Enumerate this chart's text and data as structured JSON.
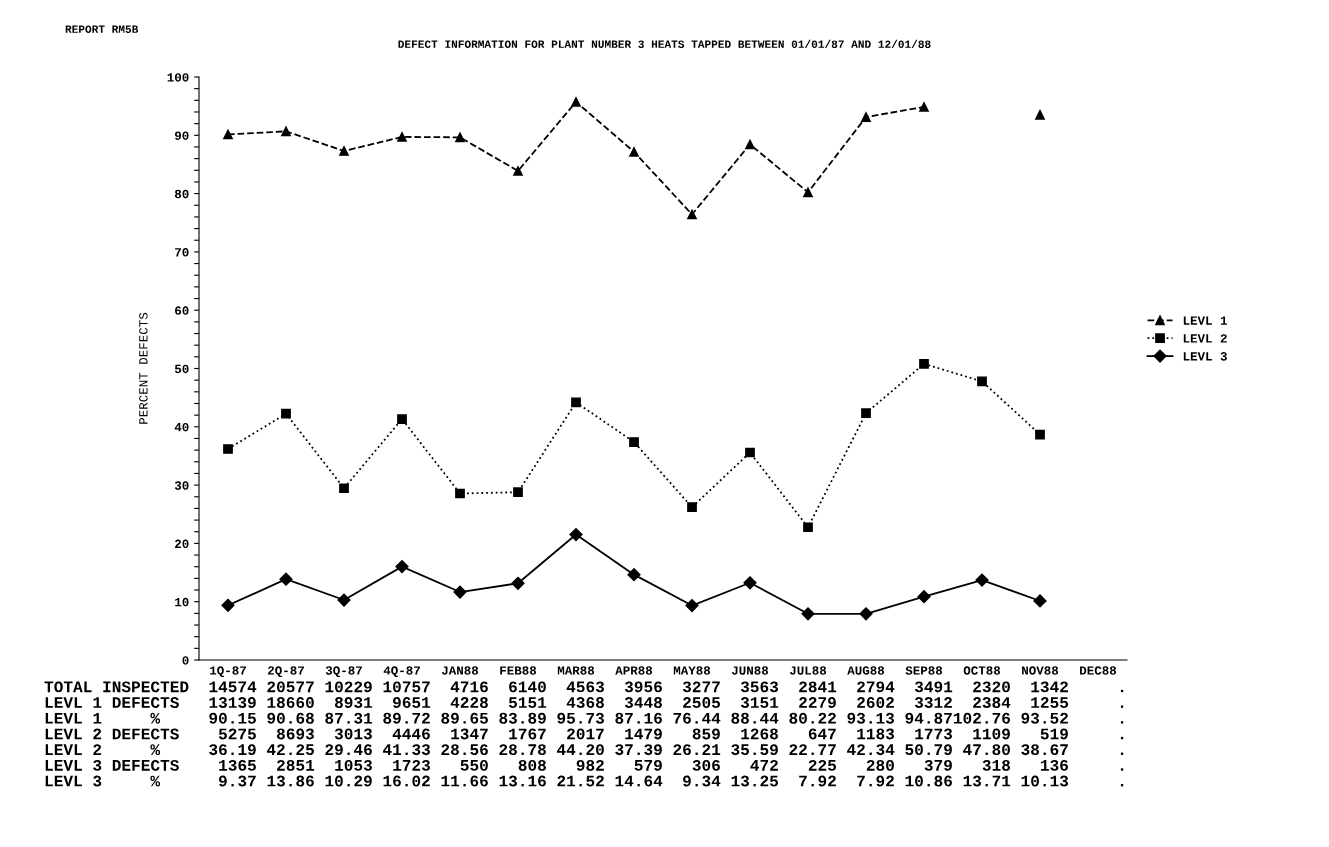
{
  "chart_data": {
    "type": "line",
    "title": "DEFECT INFORMATION FOR PLANT NUMBER 3 HEATS TAPPED BETWEEN 01/01/87 AND 12/01/88",
    "ylabel": "PERCENT DEFECTS",
    "categories": [
      "1Q-87",
      "2Q-87",
      "3Q-87",
      "4Q-87",
      "JAN88",
      "FEB88",
      "MAR88",
      "APR88",
      "MAY88",
      "JUN88",
      "JUL88",
      "AUG88",
      "SEP88",
      "OCT88",
      "NOV88",
      "DEC88"
    ],
    "series": [
      {
        "name": "LEVL 1",
        "color": "#000000",
        "marker": "triangle",
        "line_style": "dashed",
        "values": [
          90.15,
          90.68,
          87.31,
          89.72,
          89.65,
          83.89,
          95.73,
          87.16,
          76.44,
          88.44,
          80.22,
          93.13,
          94.87,
          null,
          93.52,
          null
        ]
      },
      {
        "name": "LEVL 2",
        "color": "#000000",
        "marker": "square",
        "line_style": "dotted",
        "values": [
          36.19,
          42.25,
          29.46,
          41.33,
          28.56,
          28.78,
          44.2,
          37.39,
          26.21,
          35.59,
          22.77,
          42.34,
          50.79,
          47.8,
          38.67,
          null
        ]
      },
      {
        "name": "LEVL 3",
        "color": "#000000",
        "marker": "diamond",
        "line_style": "solid",
        "values": [
          9.37,
          13.86,
          10.29,
          16.02,
          11.66,
          13.16,
          21.52,
          14.64,
          9.34,
          13.25,
          7.92,
          7.92,
          10.86,
          13.71,
          10.13,
          null
        ]
      }
    ],
    "ylim": [
      0,
      100
    ],
    "yticks": [
      0,
      {
        "value": 2,
        "label": null
      },
      {
        "value": 4,
        "label": null
      },
      {
        "value": 6,
        "label": null
      },
      {
        "value": 8,
        "label": null
      },
      10,
      {
        "value": 12,
        "label": null
      },
      {
        "value": 14,
        "label": null
      },
      {
        "value": 16,
        "label": null
      },
      {
        "value": 18,
        "label": null
      },
      20,
      {
        "value": 22,
        "label": null
      },
      {
        "value": 24,
        "label": null
      },
      {
        "value": 26,
        "label": null
      },
      {
        "value": 28,
        "label": null
      },
      30,
      {
        "value": 32,
        "label": null
      },
      {
        "value": 34,
        "label": null
      },
      {
        "value": 36,
        "label": null
      },
      {
        "value": 38,
        "label": null
      },
      40,
      {
        "value": 42,
        "label": null
      },
      {
        "value": 44,
        "label": null
      },
      {
        "value": 46,
        "label": null
      },
      {
        "value": 48,
        "label": null
      },
      50,
      {
        "value": 52,
        "label": null
      },
      {
        "value": 54,
        "label": null
      },
      {
        "value": 56,
        "label": null
      },
      {
        "value": 58,
        "label": null
      },
      60,
      {
        "value": 62,
        "label": null
      },
      {
        "value": 64,
        "label": null
      },
      {
        "value": 66,
        "label": null
      },
      {
        "value": 68,
        "label": null
      },
      70,
      {
        "value": 72,
        "label": null
      },
      {
        "value": 74,
        "label": null
      },
      {
        "value": 76,
        "label": null
      },
      {
        "value": 78,
        "label": null
      },
      80,
      {
        "value": 82,
        "label": null
      },
      {
        "value": 84,
        "label": null
      },
      {
        "value": 86,
        "label": null
      },
      {
        "value": 88,
        "label": null
      },
      90,
      {
        "value": 92,
        "label": null
      },
      {
        "value": 94,
        "label": null
      },
      {
        "value": 96,
        "label": null
      },
      {
        "value": 98,
        "label": null
      },
      100
    ],
    "grid": false,
    "legend": "right",
    "annotations": [
      "REPORT RM5B",
      "TOTAL INSPECTED  14574 20577 10229 10757  4716  6140  4563  3956  3277  3563  2841  2794  3491  2320  1342     .",
      "LEVL 1 DEFECTS   13139 18660  8931  9651  4228  5151  4368  3448  2505  3151  2279  2602  3312  2384  1255     .",
      "LEVL 1     %     90.15 90.68 87.31 89.72 89.65 83.89 95.73 87.16 76.44 88.44 80.22 93.13 94.87102.76 93.52     .",
      "LEVL 2 DEFECTS    5275  8693  3013  4446  1347  1767  2017  1479   859  1268   647  1183  1773  1109   519     .",
      "LEVL 2     %     36.19 42.25 29.46 41.33 28.56 28.78 44.20 37.39 26.21 35.59 22.77 42.34 50.79 47.80 38.67     .",
      "LEVL 3 DEFECTS    1365  2851  1053  1723   550   808   982   579   306   472   225   280   379   318   136     .",
      "LEVL 3     %      9.37 13.86 10.29 16.02 11.66 13.16 21.52 14.64  9.34 13.25  7.92  7.92 10.86 13.71 10.13     ."
    ]
  }
}
